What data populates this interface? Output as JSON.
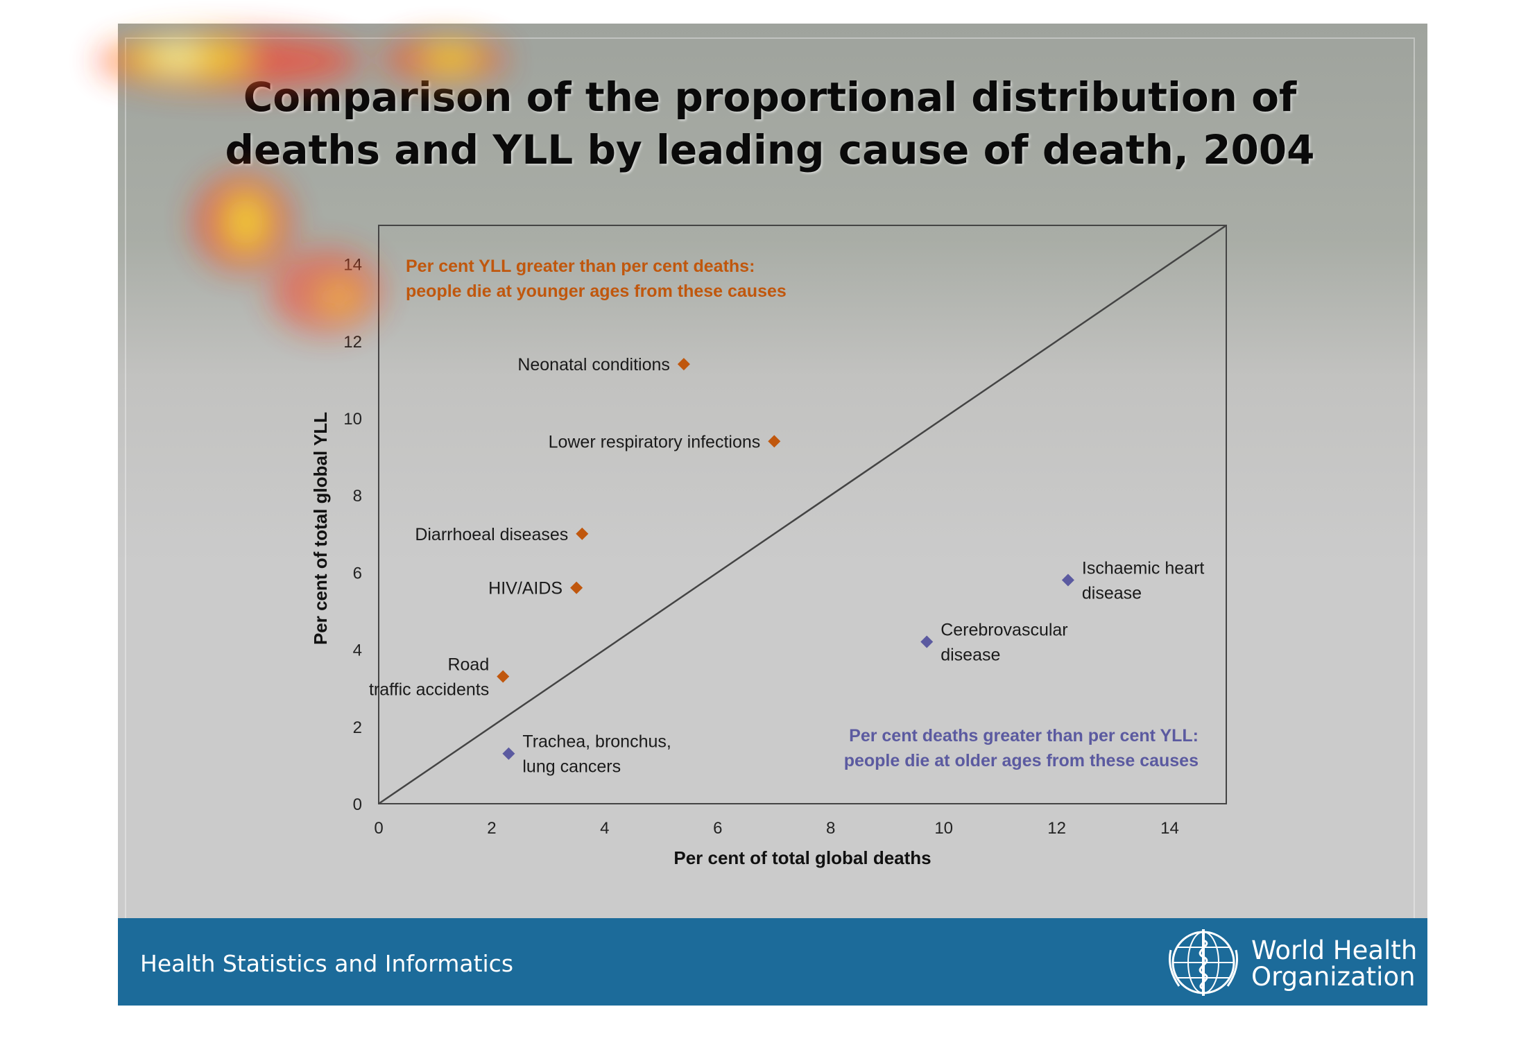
{
  "slide": {
    "title_line1": "Comparison of the proportional distribution of",
    "title_line2": "deaths and YLL by leading cause of death, 2004"
  },
  "footer": {
    "text": "Health Statistics and Informatics",
    "org_line1": "World Health",
    "org_line2": "Organization",
    "logo_icon": "who-emblem-icon"
  },
  "colors": {
    "younger": "#c0570d",
    "older": "#5b5aa0",
    "footer_bar": "#1c6b9a"
  },
  "chart_data": {
    "type": "scatter",
    "xlabel": "Per cent of total global deaths",
    "ylabel": "Per cent of total global YLL",
    "xlim": [
      0,
      15
    ],
    "ylim": [
      0,
      15
    ],
    "xticks": [
      0,
      2,
      4,
      6,
      8,
      10,
      12,
      14
    ],
    "yticks": [
      0,
      2,
      4,
      6,
      8,
      10,
      12,
      14
    ],
    "reference_line": "y = x",
    "annotations": {
      "younger_line1": "Per cent YLL greater than per cent deaths:",
      "younger_line2": "people die at younger ages from these causes",
      "older_line1": "Per cent deaths greater than per cent YLL:",
      "older_line2": "people die at older ages from these causes"
    },
    "points": [
      {
        "label_lines": [
          "Neonatal conditions"
        ],
        "x": 5.4,
        "y": 11.4,
        "group": "younger"
      },
      {
        "label_lines": [
          "Lower respiratory infections"
        ],
        "x": 7.0,
        "y": 9.4,
        "group": "younger"
      },
      {
        "label_lines": [
          "Diarrhoeal diseases"
        ],
        "x": 3.6,
        "y": 7.0,
        "group": "younger"
      },
      {
        "label_lines": [
          "HIV/AIDS"
        ],
        "x": 3.5,
        "y": 5.6,
        "group": "younger"
      },
      {
        "label_lines": [
          "Road",
          "traffic accidents"
        ],
        "x": 2.2,
        "y": 3.3,
        "group": "younger"
      },
      {
        "label_lines": [
          "Trachea, bronchus,",
          "lung cancers"
        ],
        "x": 2.3,
        "y": 1.3,
        "group": "older"
      },
      {
        "label_lines": [
          "Cerebrovascular",
          "disease"
        ],
        "x": 9.7,
        "y": 4.2,
        "group": "older"
      },
      {
        "label_lines": [
          "Ischaemic heart",
          "disease"
        ],
        "x": 12.2,
        "y": 5.8,
        "group": "older"
      }
    ]
  }
}
